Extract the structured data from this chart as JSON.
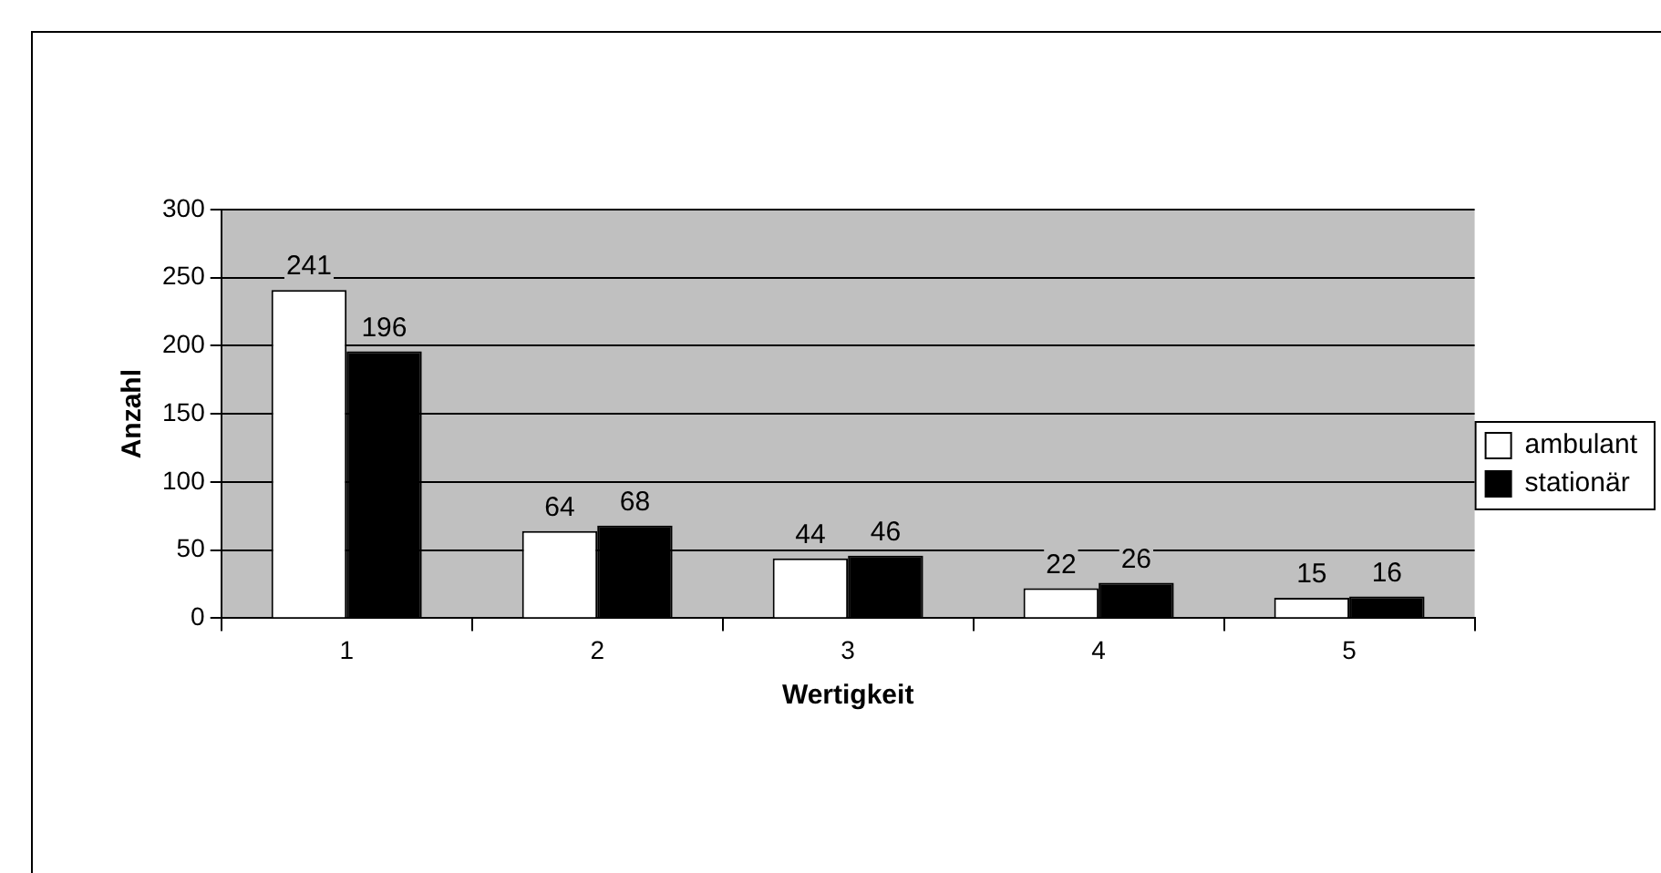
{
  "chart_data": {
    "type": "bar",
    "xlabel": "Wertigkeit",
    "ylabel": "Anzahl",
    "categories": [
      "1",
      "2",
      "3",
      "4",
      "5"
    ],
    "series": [
      {
        "name": "ambulant",
        "color": "#ffffff",
        "values": [
          241,
          64,
          44,
          22,
          15
        ]
      },
      {
        "name": "stationär",
        "color": "#000000",
        "values": [
          196,
          68,
          46,
          26,
          16
        ]
      }
    ],
    "ylim": [
      0,
      300
    ],
    "yticks": [
      0,
      50,
      100,
      150,
      200,
      250,
      300
    ],
    "grid": "y",
    "legend": "right",
    "data_labels": true
  }
}
